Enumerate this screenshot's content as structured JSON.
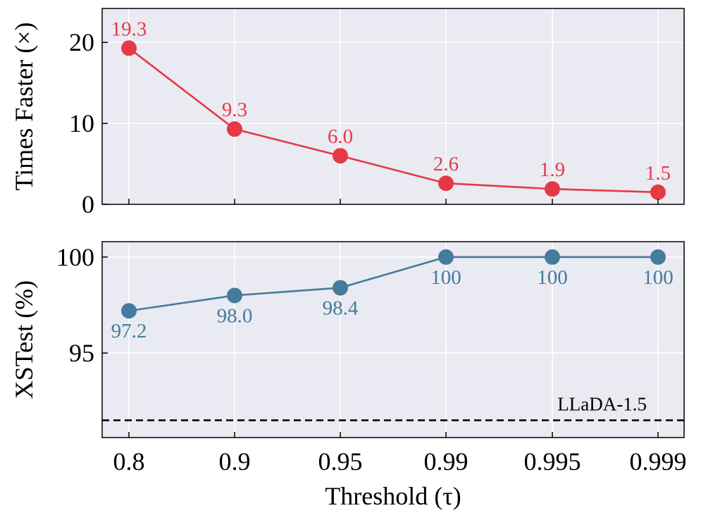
{
  "chart_data": [
    {
      "type": "line",
      "name": "speedup",
      "categories": [
        "0.8",
        "0.9",
        "0.95",
        "0.99",
        "0.995",
        "0.999"
      ],
      "values": [
        19.3,
        9.3,
        6.0,
        2.6,
        1.9,
        1.5
      ],
      "data_labels": [
        "19.3",
        "9.3",
        "6.0",
        "2.6",
        "1.9",
        "1.5"
      ],
      "ylabel": "Times Faster (×)",
      "ylim": [
        0,
        24.2
      ],
      "yticks": [
        0,
        10,
        20
      ],
      "ytick_labels": [
        "0",
        "10",
        "20"
      ],
      "color": "#e63946",
      "grid": true,
      "label_position": "above"
    },
    {
      "type": "line",
      "name": "xstest",
      "categories": [
        "0.8",
        "0.9",
        "0.95",
        "0.99",
        "0.995",
        "0.999"
      ],
      "values": [
        97.2,
        98.0,
        98.4,
        100,
        100,
        100
      ],
      "data_labels": [
        "97.2",
        "98.0",
        "98.4",
        "100",
        "100",
        "100"
      ],
      "ylabel": "XSTest (%)",
      "ylim": [
        90.6,
        100.8
      ],
      "yticks": [
        95,
        100
      ],
      "ytick_labels": [
        "95",
        "100"
      ],
      "color": "#457b9d",
      "grid": true,
      "label_position": "below",
      "reference_line": {
        "value": 91.5,
        "label": "LLaDA-1.5",
        "style": "dashed",
        "color": "#000000"
      }
    }
  ],
  "xlabel": "Threshold (τ)",
  "xtick_labels": [
    "0.8",
    "0.9",
    "0.95",
    "0.99",
    "0.995",
    "0.999"
  ],
  "colors": {
    "panel_bg": "#eaeaf2",
    "grid": "#ffffff",
    "axis": "#000000"
  }
}
